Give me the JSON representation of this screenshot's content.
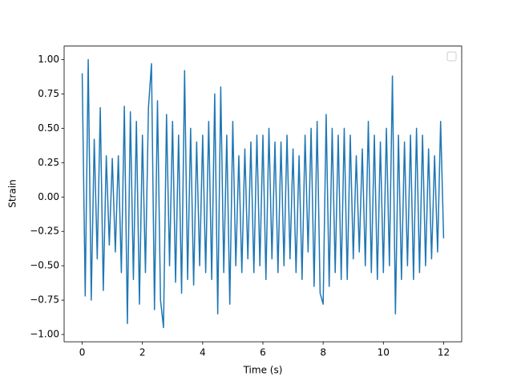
{
  "chart_data": {
    "type": "line",
    "xlabel": "Time (s)",
    "ylabel": "Strain",
    "color": "#1f77b4",
    "x": [
      0,
      0.1,
      0.2,
      0.3,
      0.4,
      0.5,
      0.6,
      0.7,
      0.8,
      0.9,
      1,
      1.1,
      1.2,
      1.3,
      1.4,
      1.5,
      1.6,
      1.7,
      1.8,
      1.9,
      2,
      2.1,
      2.2,
      2.3,
      2.4,
      2.5,
      2.6,
      2.7,
      2.8,
      2.9,
      3,
      3.1,
      3.2,
      3.3,
      3.4,
      3.5,
      3.6,
      3.7,
      3.8,
      3.9,
      4,
      4.1,
      4.2,
      4.3,
      4.4,
      4.5,
      4.6,
      4.7,
      4.8,
      4.9,
      5,
      5.1,
      5.2,
      5.3,
      5.4,
      5.5,
      5.6,
      5.7,
      5.8,
      5.9,
      6,
      6.1,
      6.2,
      6.3,
      6.4,
      6.5,
      6.6,
      6.7,
      6.8,
      6.9,
      7,
      7.1,
      7.2,
      7.3,
      7.4,
      7.5,
      7.6,
      7.7,
      7.8,
      7.9,
      8,
      8.1,
      8.2,
      8.3,
      8.4,
      8.5,
      8.6,
      8.7,
      8.8,
      8.9,
      9,
      9.1,
      9.2,
      9.3,
      9.4,
      9.5,
      9.6,
      9.7,
      9.8,
      9.9,
      10,
      10.1,
      10.2,
      10.3,
      10.4,
      10.5,
      10.6,
      10.7,
      10.8,
      10.9,
      11,
      11.1,
      11.2,
      11.3,
      11.4,
      11.5,
      11.6,
      11.7,
      11.8,
      11.9,
      12
    ],
    "values": [
      0.9,
      -0.72,
      1.0,
      -0.75,
      0.42,
      -0.45,
      0.65,
      -0.68,
      0.3,
      -0.35,
      0.28,
      -0.4,
      0.3,
      -0.55,
      0.66,
      -0.92,
      0.62,
      -0.6,
      0.55,
      -0.78,
      0.45,
      -0.55,
      0.65,
      0.97,
      -0.82,
      0.7,
      -0.75,
      -0.95,
      0.6,
      -0.5,
      0.55,
      -0.62,
      0.45,
      -0.7,
      0.92,
      -0.6,
      0.5,
      -0.64,
      0.4,
      -0.5,
      0.45,
      -0.55,
      0.55,
      -0.6,
      0.75,
      -0.85,
      0.8,
      -0.55,
      0.45,
      -0.78,
      0.55,
      -0.5,
      0.3,
      -0.55,
      0.35,
      -0.45,
      0.4,
      -0.55,
      0.45,
      -0.5,
      0.45,
      -0.6,
      0.5,
      -0.45,
      0.4,
      -0.55,
      0.4,
      -0.5,
      0.45,
      -0.45,
      0.35,
      -0.55,
      0.3,
      -0.6,
      0.45,
      -0.4,
      0.5,
      -0.65,
      0.55,
      -0.7,
      -0.78,
      0.6,
      -0.65,
      0.5,
      -0.55,
      0.45,
      -0.6,
      0.5,
      -0.6,
      0.45,
      -0.45,
      0.3,
      -0.4,
      0.35,
      -0.5,
      0.55,
      -0.55,
      0.45,
      -0.6,
      0.4,
      -0.55,
      0.5,
      -0.5,
      0.88,
      -0.85,
      0.45,
      -0.6,
      0.4,
      -0.5,
      0.45,
      -0.6,
      0.5,
      -0.55,
      0.45,
      -0.5,
      0.35,
      -0.45,
      0.3,
      -0.4,
      0.55,
      -0.3
    ],
    "xlim": [
      -0.6,
      12.6
    ],
    "ylim": [
      -1.053,
      1.098
    ],
    "xticks": [
      0,
      2,
      4,
      6,
      8,
      10,
      12
    ],
    "yticks": [
      {
        "value": -1,
        "label": "−1.00"
      },
      {
        "value": -0.75,
        "label": "−0.75"
      },
      {
        "value": -0.5,
        "label": "−0.50"
      },
      {
        "value": -0.25,
        "label": "−0.25"
      },
      {
        "value": 0,
        "label": "0.00"
      },
      {
        "value": 0.25,
        "label": "0.25"
      },
      {
        "value": 0.5,
        "label": "0.50"
      },
      {
        "value": 0.75,
        "label": "0.75"
      },
      {
        "value": 1,
        "label": "1.00"
      }
    ]
  }
}
